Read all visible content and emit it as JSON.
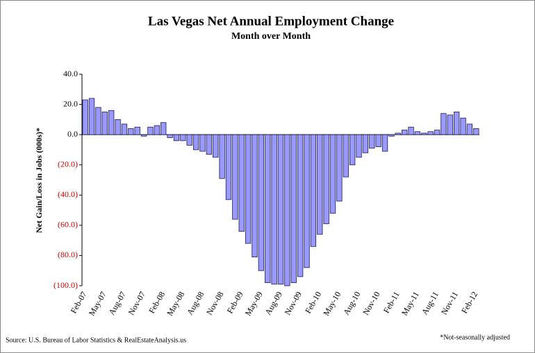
{
  "chart_data": {
    "type": "bar",
    "title": "Las Vegas Net Annual Employment Change",
    "subtitle": "Month over Month",
    "y_label": "Net Gain/Loss in Jobs (000s)*",
    "source": "Source: U.S. Bureau of Labor Statistics & RealEstateAnalysis.us",
    "note": "*Not-seasonally adjusted",
    "categories": [
      "Feb-07",
      null,
      null,
      "May-07",
      null,
      null,
      "Aug-07",
      null,
      null,
      "Nov-07",
      null,
      null,
      "Feb-08",
      null,
      null,
      "May-08",
      null,
      null,
      "Aug-08",
      null,
      null,
      "Nov-08",
      null,
      null,
      "Feb-09",
      null,
      null,
      "May-09",
      null,
      null,
      "Aug-09",
      null,
      null,
      "Nov-09",
      null,
      null,
      "Feb-10",
      null,
      null,
      "May-10",
      null,
      null,
      "Aug-10",
      null,
      null,
      "Nov-10",
      null,
      null,
      "Feb-11",
      null,
      null,
      "May-11",
      null,
      null,
      "Aug-11",
      null,
      null,
      "Nov-11",
      null,
      null,
      "Feb-12"
    ],
    "values": [
      23,
      24,
      18,
      15,
      16,
      10,
      7,
      4,
      5,
      -1,
      5,
      6,
      8,
      -2,
      -4,
      -4,
      -7,
      -10,
      -11,
      -13,
      -15,
      -29,
      -43,
      -56,
      -64,
      -72,
      -81,
      -90,
      -98,
      -99,
      -99,
      -100,
      -98,
      -94,
      -88,
      -74,
      -66,
      -59,
      -52,
      -44,
      -28,
      -20,
      -15,
      -12,
      -9,
      -8,
      -11,
      -1,
      1,
      3,
      5,
      2,
      1,
      2,
      3,
      14,
      13,
      15,
      11,
      7,
      4
    ],
    "color": "#9999ff",
    "tick_color": "#000000",
    "negative_tick_color": "#cc0000",
    "ylim": [
      -100,
      40
    ],
    "yticks": [
      {
        "value": -100,
        "label": "(100.0)"
      },
      {
        "value": -80,
        "label": "(80.0)"
      },
      {
        "value": -60,
        "label": "(60.0)"
      },
      {
        "value": -40,
        "label": "(40.0)"
      },
      {
        "value": -20,
        "label": "(20.0)"
      },
      {
        "value": 0,
        "label": "0.0"
      },
      {
        "value": 20,
        "label": "20.0"
      },
      {
        "value": 40,
        "label": "40.0"
      }
    ],
    "grid": false
  }
}
